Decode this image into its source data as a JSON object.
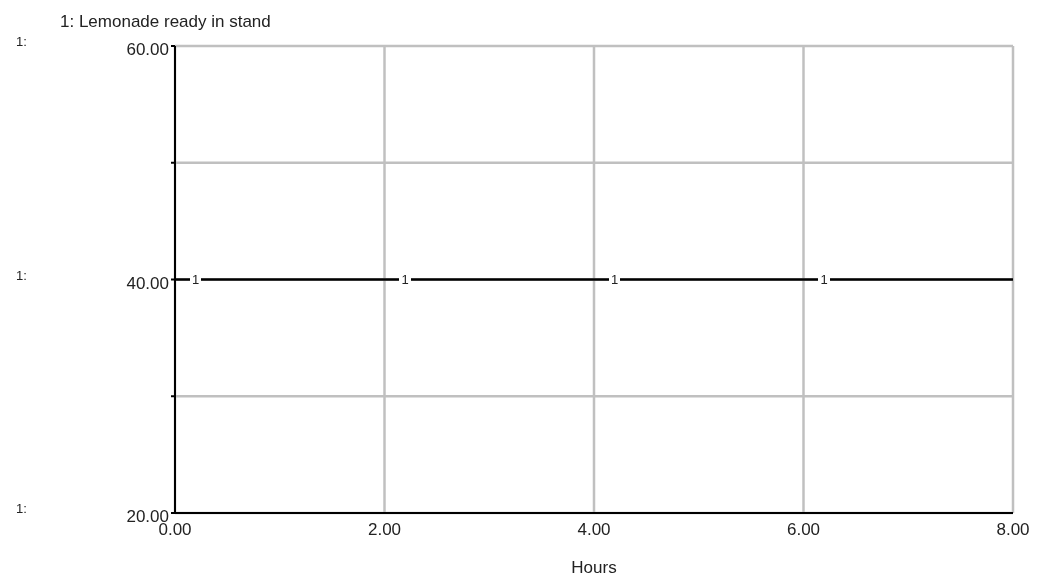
{
  "chart_data": {
    "type": "line",
    "legend": "top left",
    "grid": true,
    "xlabel": "Hours",
    "x": [
      0,
      8
    ],
    "series": [
      {
        "name": "1: Lemonade ready in stand",
        "color": "#000000",
        "values": [
          40,
          40
        ]
      }
    ],
    "xlim": [
      0,
      8
    ],
    "xticks": [
      {
        "value": 0,
        "label": "0.00"
      },
      {
        "value": 2,
        "label": "2.00"
      },
      {
        "value": 4,
        "label": "4.00"
      },
      {
        "value": 6,
        "label": "6.00"
      },
      {
        "value": 8,
        "label": "8.00"
      }
    ],
    "ylim": [
      20,
      60
    ],
    "yticks": [
      {
        "value": 20,
        "label": "20.00"
      },
      {
        "value": 30,
        "label": null
      },
      {
        "value": 40,
        "label": "40.00"
      },
      {
        "value": 50,
        "label": null
      },
      {
        "value": 60,
        "label": "60.00"
      }
    ],
    "annotations": [
      "1:",
      "1:",
      "1:",
      {
        "text": "1",
        "x": 0.2,
        "y": 40
      },
      {
        "text": "1",
        "x": 2.2,
        "y": 40
      },
      {
        "text": "1",
        "x": 4.2,
        "y": 40
      },
      {
        "text": "1",
        "x": 6.2,
        "y": 40
      }
    ]
  }
}
